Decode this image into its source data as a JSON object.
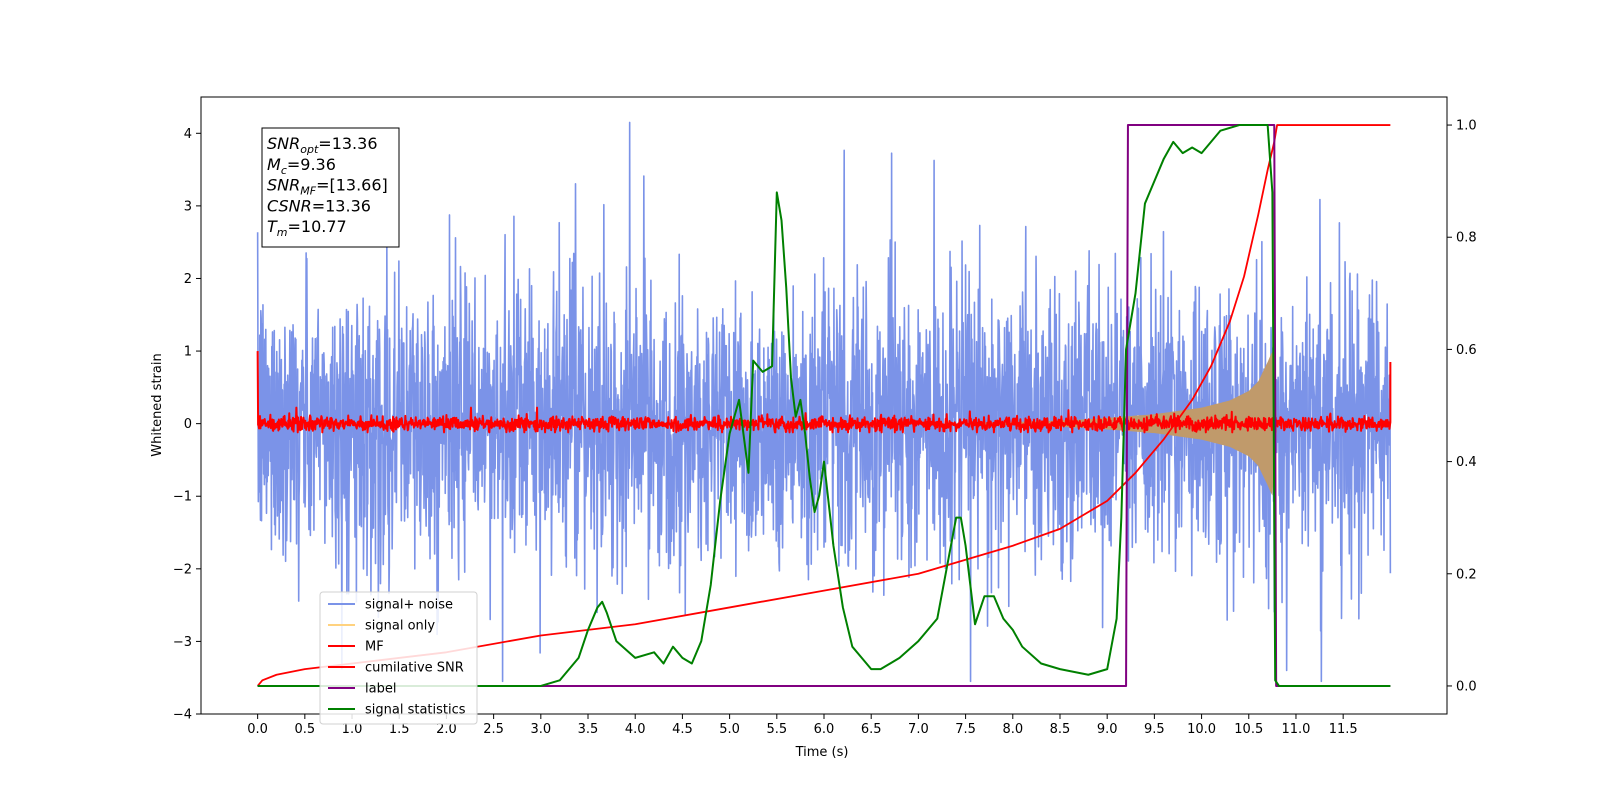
{
  "chart_data": {
    "type": "line",
    "xlabel": "Time (s)",
    "ylabel": "Whitened strain",
    "xlim": [
      -0.6,
      12.6
    ],
    "ylim": [
      -4.0,
      4.5
    ],
    "y2lim": [
      -0.05,
      1.05
    ],
    "x_ticks": [
      0.0,
      0.5,
      1.0,
      1.5,
      2.0,
      2.5,
      3.0,
      3.5,
      4.0,
      4.5,
      5.0,
      5.5,
      6.0,
      6.5,
      7.0,
      7.5,
      8.0,
      8.5,
      9.0,
      9.5,
      10.0,
      10.5,
      11.0,
      11.5
    ],
    "x_tick_labels": [
      "0.0",
      "0.5",
      "1.0",
      "1.5",
      "2.0",
      "2.5",
      "3.0",
      "3.5",
      "4.0",
      "4.5",
      "5.0",
      "5.5",
      "6.0",
      "6.5",
      "7.0",
      "7.5",
      "8.0",
      "8.5",
      "9.0",
      "9.5",
      "10.0",
      "10.5",
      "11.0",
      "11.5"
    ],
    "y_ticks": [
      -4,
      -3,
      -2,
      -1,
      0,
      1,
      2,
      3,
      4
    ],
    "y_tick_labels": [
      "−4",
      "−3",
      "−2",
      "−1",
      "0",
      "1",
      "2",
      "3",
      "4"
    ],
    "y2_ticks": [
      0.0,
      0.2,
      0.4,
      0.6,
      0.8,
      1.0
    ],
    "y2_tick_labels": [
      "0.0",
      "0.2",
      "0.4",
      "0.6",
      "0.8",
      "1.0"
    ],
    "grid": false,
    "legend_position": "lower-left",
    "series": [
      {
        "name": "signal+ noise",
        "color": "#7b93e8",
        "axis": "left",
        "description_values": {
          "t_range": [
            0.0,
            12.0
          ],
          "approx_std": 0.95
        }
      },
      {
        "name": "signal only",
        "color": "#ffd27f",
        "axis": "left",
        "x": [
          9.0,
          9.5,
          10.0,
          10.3,
          10.5,
          10.6,
          10.7,
          10.75,
          10.8
        ],
        "envelope": [
          0.08,
          0.13,
          0.22,
          0.32,
          0.45,
          0.58,
          0.85,
          1.0,
          0.0
        ]
      },
      {
        "name": "MF",
        "color": "#ff0000",
        "axis": "left",
        "description_values": {
          "t_range": [
            0.0,
            12.0
          ],
          "level": 0.0,
          "approx_std": 0.05,
          "edge_values": [
            1.0,
            0.85
          ]
        }
      },
      {
        "name": "cumilative SNR",
        "color": "#ff0000",
        "axis": "right",
        "x": [
          0.0,
          0.05,
          0.2,
          0.5,
          1.0,
          2.0,
          3.0,
          4.0,
          5.0,
          6.0,
          7.0,
          8.0,
          8.5,
          9.0,
          9.3,
          9.6,
          9.9,
          10.1,
          10.3,
          10.45,
          10.6,
          10.7,
          10.77,
          10.8,
          12.0
        ],
        "values": [
          0.0,
          0.01,
          0.02,
          0.03,
          0.04,
          0.06,
          0.09,
          0.11,
          0.14,
          0.17,
          0.2,
          0.25,
          0.28,
          0.33,
          0.38,
          0.44,
          0.51,
          0.57,
          0.65,
          0.73,
          0.84,
          0.92,
          0.97,
          1.0,
          1.0
        ]
      },
      {
        "name": "label",
        "color": "#800080",
        "axis": "right",
        "x": [
          0.0,
          9.2,
          9.22,
          10.77,
          10.79,
          12.0
        ],
        "values": [
          0.0,
          0.0,
          1.0,
          1.0,
          0.0,
          0.0
        ]
      },
      {
        "name": "signal statistics",
        "color": "#008000",
        "axis": "right",
        "x": [
          0.0,
          1.0,
          2.0,
          2.5,
          3.0,
          3.2,
          3.4,
          3.5,
          3.6,
          3.65,
          3.7,
          3.8,
          4.0,
          4.2,
          4.3,
          4.4,
          4.5,
          4.6,
          4.7,
          4.8,
          4.9,
          5.0,
          5.1,
          5.2,
          5.25,
          5.3,
          5.35,
          5.45,
          5.5,
          5.55,
          5.6,
          5.65,
          5.7,
          5.75,
          5.8,
          5.85,
          5.9,
          5.95,
          6.0,
          6.1,
          6.2,
          6.3,
          6.4,
          6.5,
          6.6,
          6.8,
          7.0,
          7.2,
          7.4,
          7.45,
          7.5,
          7.6,
          7.7,
          7.8,
          7.9,
          8.0,
          8.1,
          8.3,
          8.5,
          8.8,
          9.0,
          9.1,
          9.15,
          9.2,
          9.3,
          9.35,
          9.4,
          9.5,
          9.6,
          9.7,
          9.8,
          9.9,
          10.0,
          10.1,
          10.2,
          10.4,
          10.6,
          10.7,
          10.75,
          10.78,
          10.82,
          10.9,
          11.0,
          11.5,
          12.0
        ],
        "values": [
          0.0,
          0.0,
          0.0,
          0.0,
          0.0,
          0.01,
          0.05,
          0.1,
          0.14,
          0.15,
          0.13,
          0.08,
          0.05,
          0.06,
          0.04,
          0.07,
          0.05,
          0.04,
          0.08,
          0.18,
          0.33,
          0.45,
          0.51,
          0.38,
          0.58,
          0.57,
          0.56,
          0.57,
          0.88,
          0.83,
          0.71,
          0.55,
          0.48,
          0.51,
          0.45,
          0.37,
          0.31,
          0.34,
          0.4,
          0.25,
          0.14,
          0.07,
          0.05,
          0.03,
          0.03,
          0.05,
          0.08,
          0.12,
          0.3,
          0.3,
          0.25,
          0.11,
          0.16,
          0.16,
          0.12,
          0.1,
          0.07,
          0.04,
          0.03,
          0.02,
          0.03,
          0.12,
          0.3,
          0.6,
          0.7,
          0.78,
          0.86,
          0.9,
          0.94,
          0.97,
          0.95,
          0.96,
          0.95,
          0.97,
          0.99,
          1.0,
          1.0,
          1.0,
          0.88,
          0.01,
          0.0,
          0.0,
          0.0,
          0.0,
          0.0
        ]
      }
    ],
    "annotation": {
      "lines": [
        {
          "base": "SNR",
          "sub": "opt",
          "value": "=13.36"
        },
        {
          "base": "M",
          "sub": "c",
          "value": "=9.36"
        },
        {
          "base": "SNR",
          "sub": "MF",
          "value": "=[13.66]"
        },
        {
          "base": "CSNR",
          "sub": "",
          "value": "=13.36"
        },
        {
          "base": "T",
          "sub": "m",
          "value": "=10.77"
        }
      ]
    }
  }
}
